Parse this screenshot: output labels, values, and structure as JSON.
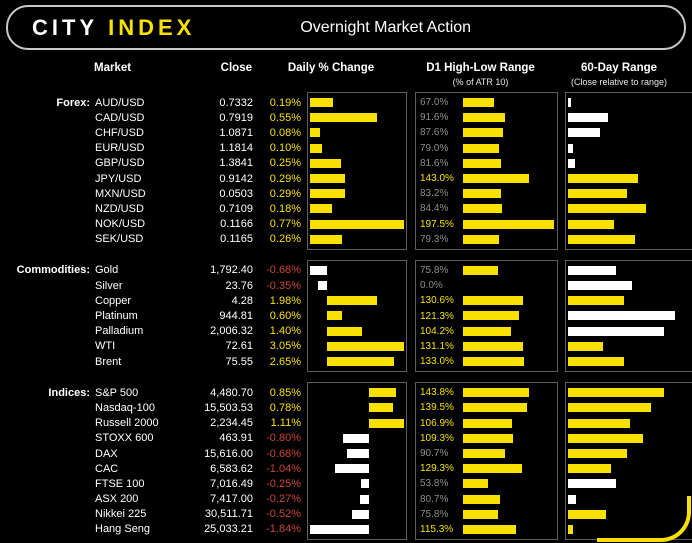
{
  "header": {
    "logo_city": "CITY",
    "logo_index": "INDEX",
    "title": "Overnight Market Action"
  },
  "columns": {
    "market": "Market",
    "close": "Close",
    "daily_change": "Daily % Change",
    "d1_range": "D1 High-Low Range",
    "d1_range_sub": "(% of ATR 10)",
    "sixty_day": "60-Day Range",
    "sixty_day_sub": "(Close relative to range)"
  },
  "colors": {
    "positive_text": "#f8e100",
    "negative_text": "#cc4437",
    "bar_positive": "#f8e100",
    "bar_negative": "#ffffff",
    "atr_text_low": "#8c8c8c",
    "atr_text_high": "#f8e100",
    "range_bar_white": "#ffffff",
    "range_bar_yellow": "#f8e100"
  },
  "chart_data": {
    "type": "bar",
    "title": "Overnight Market Action",
    "columns": [
      "Market",
      "Close",
      "Daily % Change",
      "D1 High-Low Range (% of ATR 10)",
      "60-Day Range (Close relative to range)"
    ],
    "scales": {
      "daily_change_axis": "zero axis per section, auto-scaled to section min/max",
      "atr_pct_axis": [
        0,
        200
      ],
      "range_pct_axis": [
        0,
        100
      ]
    },
    "sections": [
      {
        "id": "forex",
        "category": "Forex:",
        "rows": [
          {
            "market": "AUD/USD",
            "close": "0.7332",
            "chg": "0.19%",
            "chg_v": 0.19,
            "atr": "67.0%",
            "atr_v": 67.0,
            "rng_v": 2,
            "rng_c": "w"
          },
          {
            "market": "CAD/USD",
            "close": "0.7919",
            "chg": "0.55%",
            "chg_v": 0.55,
            "atr": "91.6%",
            "atr_v": 91.6,
            "rng_v": 30,
            "rng_c": "w"
          },
          {
            "market": "CHF/USD",
            "close": "1.0871",
            "chg": "0.08%",
            "chg_v": 0.08,
            "atr": "87.6%",
            "atr_v": 87.6,
            "rng_v": 24,
            "rng_c": "w"
          },
          {
            "market": "EUR/USD",
            "close": "1.1814",
            "chg": "0.10%",
            "chg_v": 0.1,
            "atr": "79.0%",
            "atr_v": 79.0,
            "rng_v": 4,
            "rng_c": "w"
          },
          {
            "market": "GBP/USD",
            "close": "1.3841",
            "chg": "0.25%",
            "chg_v": 0.25,
            "atr": "81.6%",
            "atr_v": 81.6,
            "rng_v": 5,
            "rng_c": "w"
          },
          {
            "market": "JPY/USD",
            "close": "0.9142",
            "chg": "0.29%",
            "chg_v": 0.29,
            "atr": "143.0%",
            "atr_v": 143.0,
            "rng_v": 52,
            "rng_c": "y"
          },
          {
            "market": "MXN/USD",
            "close": "0.0503",
            "chg": "0.29%",
            "chg_v": 0.29,
            "atr": "83.2%",
            "atr_v": 83.2,
            "rng_v": 44,
            "rng_c": "y"
          },
          {
            "market": "NZD/USD",
            "close": "0.7109",
            "chg": "0.18%",
            "chg_v": 0.18,
            "atr": "84.4%",
            "atr_v": 84.4,
            "rng_v": 58,
            "rng_c": "y"
          },
          {
            "market": "NOK/USD",
            "close": "0.1166",
            "chg": "0.77%",
            "chg_v": 0.77,
            "atr": "197.5%",
            "atr_v": 197.5,
            "rng_v": 34,
            "rng_c": "y"
          },
          {
            "market": "SEK/USD",
            "close": "0.1165",
            "chg": "0.26%",
            "chg_v": 0.26,
            "atr": "79.3%",
            "atr_v": 79.3,
            "rng_v": 50,
            "rng_c": "y"
          }
        ]
      },
      {
        "id": "commodities",
        "category": "Commodities:",
        "rows": [
          {
            "market": "Gold",
            "close": "1,792.40",
            "chg": "-0.68%",
            "chg_v": -0.68,
            "atr": "75.8%",
            "atr_v": 75.8,
            "rng_v": 36,
            "rng_c": "w"
          },
          {
            "market": "Silver",
            "close": "23.76",
            "chg": "-0.35%",
            "chg_v": -0.35,
            "atr": "0.0%",
            "atr_v": 0.0,
            "rng_v": 48,
            "rng_c": "w"
          },
          {
            "market": "Copper",
            "close": "4.28",
            "chg": "1.98%",
            "chg_v": 1.98,
            "atr": "130.6%",
            "atr_v": 130.6,
            "rng_v": 42,
            "rng_c": "y"
          },
          {
            "market": "Platinum",
            "close": "944.81",
            "chg": "0.60%",
            "chg_v": 0.6,
            "atr": "121.3%",
            "atr_v": 121.3,
            "rng_v": 80,
            "rng_c": "w"
          },
          {
            "market": "Palladium",
            "close": "2,006.32",
            "chg": "1.40%",
            "chg_v": 1.4,
            "atr": "104.2%",
            "atr_v": 104.2,
            "rng_v": 72,
            "rng_c": "w"
          },
          {
            "market": "WTI",
            "close": "72.61",
            "chg": "3.05%",
            "chg_v": 3.05,
            "atr": "131.1%",
            "atr_v": 131.1,
            "rng_v": 26,
            "rng_c": "y"
          },
          {
            "market": "Brent",
            "close": "75.55",
            "chg": "2.65%",
            "chg_v": 2.65,
            "atr": "133.0%",
            "atr_v": 133.0,
            "rng_v": 42,
            "rng_c": "y"
          }
        ]
      },
      {
        "id": "indices",
        "category": "Indices:",
        "rows": [
          {
            "market": "S&P 500",
            "close": "4,480.70",
            "chg": "0.85%",
            "chg_v": 0.85,
            "atr": "143.8%",
            "atr_v": 143.8,
            "rng_v": 72,
            "rng_c": "y"
          },
          {
            "market": "Nasdaq-100",
            "close": "15,503.53",
            "chg": "0.78%",
            "chg_v": 0.78,
            "atr": "139.5%",
            "atr_v": 139.5,
            "rng_v": 62,
            "rng_c": "y"
          },
          {
            "market": "Russell 2000",
            "close": "2,234.45",
            "chg": "1.11%",
            "chg_v": 1.11,
            "atr": "106.9%",
            "atr_v": 106.9,
            "rng_v": 46,
            "rng_c": "y"
          },
          {
            "market": "STOXX 600",
            "close": "463.91",
            "chg": "-0.80%",
            "chg_v": -0.8,
            "atr": "109.3%",
            "atr_v": 109.3,
            "rng_v": 56,
            "rng_c": "y"
          },
          {
            "market": "DAX",
            "close": "15,616.00",
            "chg": "-0.68%",
            "chg_v": -0.68,
            "atr": "90.7%",
            "atr_v": 90.7,
            "rng_v": 44,
            "rng_c": "y"
          },
          {
            "market": "CAC",
            "close": "6,583.62",
            "chg": "-1.04%",
            "chg_v": -1.04,
            "atr": "129.3%",
            "atr_v": 129.3,
            "rng_v": 32,
            "rng_c": "y"
          },
          {
            "market": "FTSE 100",
            "close": "7,016.49",
            "chg": "-0.25%",
            "chg_v": -0.25,
            "atr": "53.8%",
            "atr_v": 53.8,
            "rng_v": 36,
            "rng_c": "w"
          },
          {
            "market": "ASX 200",
            "close": "7,417.00",
            "chg": "-0.27%",
            "chg_v": -0.27,
            "atr": "80.7%",
            "atr_v": 80.7,
            "rng_v": 6,
            "rng_c": "w"
          },
          {
            "market": "Nikkei 225",
            "close": "30,511.71",
            "chg": "-0.52%",
            "chg_v": -0.52,
            "atr": "75.8%",
            "atr_v": 75.8,
            "rng_v": 28,
            "rng_c": "y"
          },
          {
            "market": "Hang Seng",
            "close": "25,033.21",
            "chg": "-1.84%",
            "chg_v": -1.84,
            "atr": "115.3%",
            "atr_v": 115.3,
            "rng_v": 4,
            "rng_c": "y"
          }
        ]
      }
    ]
  }
}
